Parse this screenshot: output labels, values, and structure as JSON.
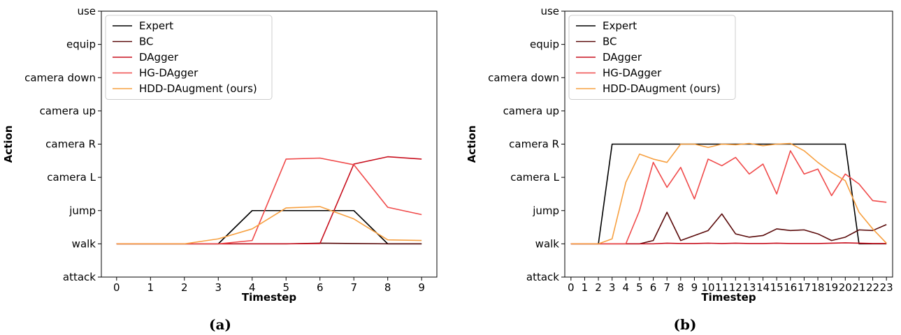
{
  "chart_data": [
    {
      "type": "line",
      "caption": "(a)",
      "xlabel": "Timestep",
      "ylabel": "Action",
      "x": [
        0,
        1,
        2,
        3,
        4,
        5,
        6,
        7,
        8,
        9
      ],
      "y_categories": [
        "attack",
        "walk",
        "jump",
        "camera L",
        "camera R",
        "camera up",
        "camera down",
        "equip",
        "use"
      ],
      "ylim": [
        -1,
        7
      ],
      "legend_position": "top-left",
      "series": [
        {
          "name": "Expert",
          "color": "#000000",
          "values": [
            0,
            0,
            0,
            0,
            1,
            1,
            1,
            1,
            0,
            0
          ]
        },
        {
          "name": "BC",
          "color": "#5a0a0a",
          "values": [
            0,
            0,
            0,
            0,
            0,
            0,
            0.02,
            0.01,
            0,
            0
          ]
        },
        {
          "name": "DAgger",
          "color": "#c8101e",
          "values": [
            0,
            0,
            0,
            0,
            0,
            0,
            0.01,
            2.4,
            2.62,
            2.55
          ]
        },
        {
          "name": "HG-DAgger",
          "color": "#f04a4a",
          "values": [
            0,
            0,
            0,
            0,
            0.1,
            2.55,
            2.58,
            2.38,
            1.1,
            0.88
          ]
        },
        {
          "name": "HDD-DAugment (ours)",
          "color": "#f7a040",
          "values": [
            0,
            0,
            0,
            0.15,
            0.45,
            1.08,
            1.12,
            0.75,
            0.12,
            0.1
          ]
        }
      ]
    },
    {
      "type": "line",
      "caption": "(b)",
      "xlabel": "Timestep",
      "ylabel": "Action",
      "x": [
        0,
        1,
        2,
        3,
        4,
        5,
        6,
        7,
        8,
        9,
        10,
        11,
        12,
        13,
        14,
        15,
        16,
        17,
        18,
        19,
        20,
        21,
        22,
        23
      ],
      "y_categories": [
        "attack",
        "walk",
        "jump",
        "camera L",
        "camera R",
        "camera up",
        "camera down",
        "equip",
        "use"
      ],
      "ylim": [
        -1,
        7
      ],
      "legend_position": "top-left",
      "series": [
        {
          "name": "Expert",
          "color": "#000000",
          "values": [
            0,
            0,
            0,
            3,
            3,
            3,
            3,
            3,
            3,
            3,
            3,
            3,
            3,
            3,
            3,
            3,
            3,
            3,
            3,
            3,
            3,
            0,
            0,
            0
          ]
        },
        {
          "name": "BC",
          "color": "#5a0a0a",
          "values": [
            0,
            0,
            0,
            0,
            0,
            0,
            0.1,
            0.95,
            0.1,
            0.25,
            0.4,
            0.9,
            0.3,
            0.2,
            0.25,
            0.45,
            0.4,
            0.42,
            0.3,
            0.1,
            0.2,
            0.42,
            0.4,
            0.58
          ]
        },
        {
          "name": "DAgger",
          "color": "#c8101e",
          "values": [
            0,
            0,
            0,
            0,
            0,
            0,
            0,
            0.02,
            0.01,
            0.01,
            0.02,
            0.01,
            0.02,
            0.01,
            0.01,
            0.02,
            0.01,
            0.01,
            0.01,
            0.02,
            0.03,
            0.02,
            0.01,
            0.01
          ]
        },
        {
          "name": "HG-DAgger",
          "color": "#f04a4a",
          "values": [
            0,
            0,
            0,
            0,
            0,
            1.0,
            2.45,
            1.7,
            2.3,
            1.35,
            2.55,
            2.35,
            2.6,
            2.1,
            2.4,
            1.5,
            2.8,
            2.1,
            2.25,
            1.45,
            2.1,
            1.8,
            1.3,
            1.25
          ]
        },
        {
          "name": "HDD-DAugment (ours)",
          "color": "#f7a040",
          "values": [
            0,
            0,
            0,
            0.15,
            1.85,
            2.7,
            2.55,
            2.45,
            3.0,
            3.0,
            2.9,
            3.0,
            2.98,
            3.02,
            2.95,
            3.0,
            3.02,
            2.8,
            2.45,
            2.15,
            1.9,
            0.95,
            0.45,
            0.02
          ]
        }
      ]
    }
  ]
}
